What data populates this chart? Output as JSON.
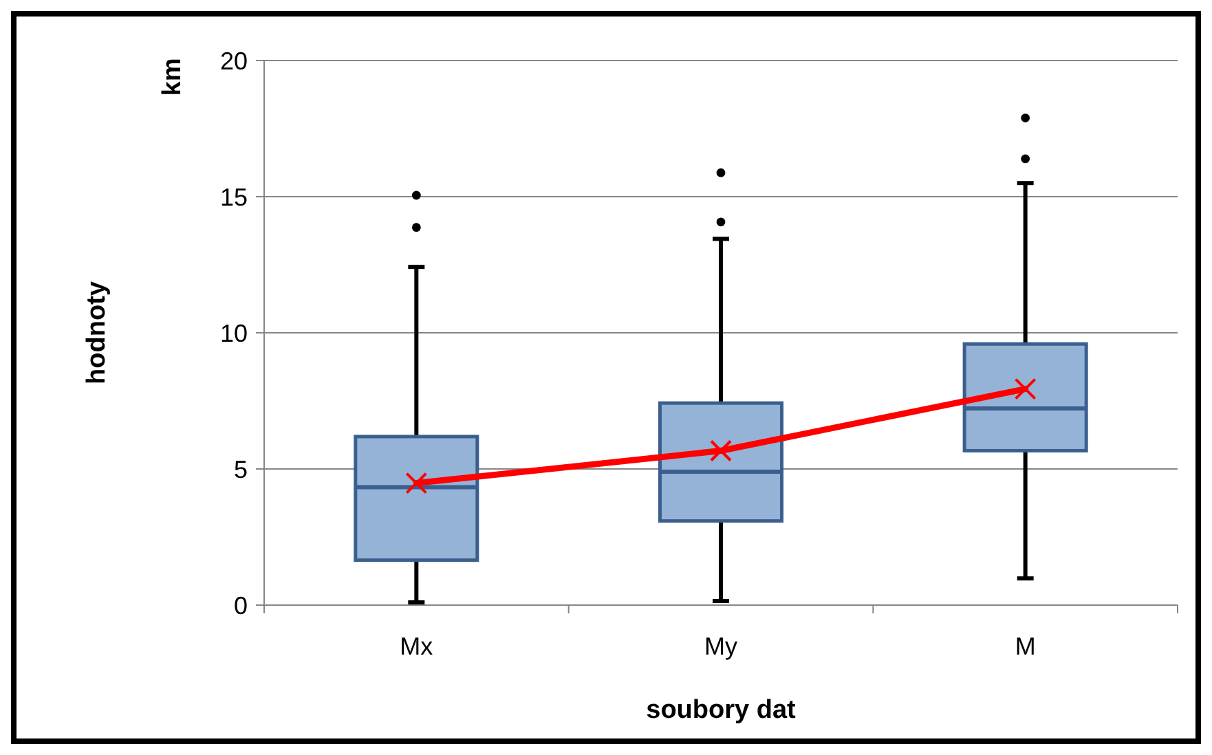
{
  "chart_data": {
    "type": "box",
    "xlabel": "soubory dat",
    "ylabel": "hodnoty",
    "annotations": [
      "km"
    ],
    "categories": [
      "Mx",
      "My",
      "M"
    ],
    "ylim": [
      0,
      20
    ],
    "yticks": [
      0,
      5,
      10,
      15,
      20
    ],
    "grid": "y",
    "series": [
      {
        "color": "#95b3d7",
        "boxes": [
          {
            "low": 0.1,
            "q1": 1.65,
            "median": 4.33,
            "q3": 6.19,
            "high": 12.42,
            "outliers": [
              13.87,
              15.05
            ]
          },
          {
            "low": 0.15,
            "q1": 3.09,
            "median": 4.9,
            "q3": 7.42,
            "high": 13.45,
            "outliers": [
              14.07,
              15.88
            ]
          },
          {
            "low": 0.98,
            "q1": 5.67,
            "median": 7.22,
            "q3": 9.59,
            "high": 15.5,
            "outliers": [
              16.39,
              17.89
            ]
          }
        ]
      },
      {
        "type": "line",
        "color": "#ff0000",
        "marker": "cross",
        "x": [
          "Mx",
          "My",
          "M"
        ],
        "values": [
          4.48,
          5.67,
          7.94
        ]
      }
    ]
  }
}
